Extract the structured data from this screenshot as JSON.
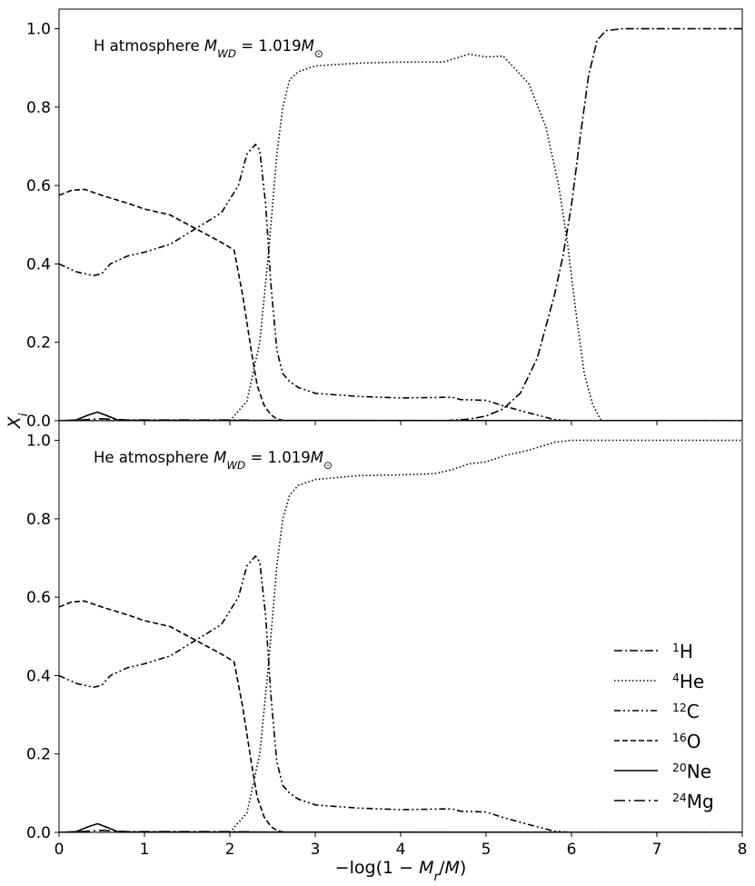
{
  "chart_data": [
    {
      "type": "line",
      "title": "H atmosphere $M_{WD} = 1.019M_\\odot$",
      "xlim": [
        0,
        8
      ],
      "ylim": [
        0,
        1.05
      ],
      "xticks": [
        "0",
        "1",
        "2",
        "3",
        "4",
        "5",
        "6",
        "7",
        "8"
      ],
      "yticks": [
        "0.0",
        "0.2",
        "0.4",
        "0.6",
        "0.8",
        "1.0"
      ],
      "series": [
        {
          "name": "1H",
          "style": "dashdot",
          "x": [
            0,
            4.5,
            4.8,
            5.0,
            5.2,
            5.4,
            5.6,
            5.8,
            5.9,
            6.0,
            6.1,
            6.2,
            6.3,
            6.4,
            6.6,
            8.0
          ],
          "y": [
            0.0,
            0.0,
            0.004,
            0.012,
            0.03,
            0.07,
            0.16,
            0.32,
            0.42,
            0.55,
            0.72,
            0.88,
            0.97,
            0.995,
            1.0,
            1.0
          ]
        },
        {
          "name": "4He",
          "style": "dotted",
          "x": [
            0,
            2.0,
            2.2,
            2.35,
            2.45,
            2.55,
            2.62,
            2.7,
            2.8,
            3.0,
            3.5,
            4.0,
            4.5,
            4.8,
            5.0,
            5.2,
            5.5,
            5.7,
            5.85,
            5.95,
            6.05,
            6.15,
            6.25,
            6.35,
            8.0
          ],
          "y": [
            0.0,
            0.0,
            0.05,
            0.2,
            0.42,
            0.68,
            0.8,
            0.87,
            0.89,
            0.905,
            0.912,
            0.915,
            0.915,
            0.935,
            0.928,
            0.93,
            0.86,
            0.75,
            0.6,
            0.46,
            0.28,
            0.12,
            0.04,
            0.0,
            0.0
          ]
        },
        {
          "name": "12C",
          "style": "dashdotdot",
          "x": [
            0,
            0.2,
            0.4,
            0.5,
            0.6,
            0.8,
            1.0,
            1.3,
            1.6,
            1.9,
            2.1,
            2.2,
            2.3,
            2.35,
            2.42,
            2.48,
            2.55,
            2.62,
            2.7,
            2.8,
            3.0,
            3.5,
            4.0,
            4.6,
            4.7,
            5.0,
            5.2,
            5.5,
            5.8,
            6.0
          ],
          "y": [
            0.4,
            0.38,
            0.37,
            0.375,
            0.4,
            0.42,
            0.43,
            0.45,
            0.49,
            0.53,
            0.6,
            0.68,
            0.705,
            0.69,
            0.55,
            0.35,
            0.18,
            0.12,
            0.1,
            0.085,
            0.07,
            0.062,
            0.058,
            0.06,
            0.054,
            0.052,
            0.038,
            0.02,
            0.003,
            0.0
          ]
        },
        {
          "name": "16O",
          "style": "dashed",
          "x": [
            0,
            0.15,
            0.3,
            0.5,
            0.8,
            1.0,
            1.3,
            1.6,
            1.9,
            2.05,
            2.15,
            2.25,
            2.32,
            2.4,
            2.48,
            2.55,
            2.62,
            2.7,
            8.0
          ],
          "y": [
            0.575,
            0.588,
            0.59,
            0.575,
            0.555,
            0.54,
            0.525,
            0.49,
            0.455,
            0.435,
            0.32,
            0.18,
            0.09,
            0.04,
            0.015,
            0.005,
            0.001,
            0.0,
            0.0
          ]
        },
        {
          "name": "20Ne",
          "style": "solid",
          "x": [
            0,
            0.2,
            0.35,
            0.45,
            0.55,
            0.7,
            8.0
          ],
          "y": [
            0.0,
            0.002,
            0.015,
            0.022,
            0.014,
            0.001,
            0.0
          ]
        },
        {
          "name": "24Mg",
          "style": "longdashdot",
          "x": [
            0,
            0.2,
            0.4,
            0.5,
            0.6,
            0.8,
            2.0,
            2.6,
            8.0
          ],
          "y": [
            0.0,
            0.001,
            0.004,
            0.005,
            0.004,
            0.002,
            0.002,
            0.0,
            0.0
          ]
        }
      ]
    },
    {
      "type": "line",
      "title": "He atmosphere $M_{WD} = 1.019M_\\odot$",
      "xlabel": "$-\\log(1 - M_r/M)$",
      "xlim": [
        0,
        8
      ],
      "ylim": [
        0,
        1.05
      ],
      "xticks": [
        "0",
        "1",
        "2",
        "3",
        "4",
        "5",
        "6",
        "7",
        "8"
      ],
      "yticks": [
        "0.0",
        "0.2",
        "0.4",
        "0.6",
        "0.8",
        "1.0"
      ],
      "series": [
        {
          "name": "4He",
          "style": "dotted",
          "x": [
            0,
            2.0,
            2.2,
            2.35,
            2.45,
            2.55,
            2.62,
            2.7,
            2.8,
            3.0,
            3.5,
            4.0,
            4.4,
            4.6,
            4.8,
            5.0,
            5.2,
            5.5,
            5.8,
            6.0,
            6.5,
            8.0
          ],
          "y": [
            0.0,
            0.0,
            0.05,
            0.2,
            0.42,
            0.68,
            0.8,
            0.86,
            0.885,
            0.9,
            0.91,
            0.912,
            0.915,
            0.925,
            0.94,
            0.945,
            0.96,
            0.975,
            0.995,
            1.0,
            1.0,
            1.0
          ]
        },
        {
          "name": "12C",
          "style": "dashdotdot",
          "x": [
            0,
            0.2,
            0.4,
            0.5,
            0.6,
            0.8,
            1.0,
            1.3,
            1.6,
            1.9,
            2.1,
            2.2,
            2.3,
            2.35,
            2.42,
            2.48,
            2.55,
            2.62,
            2.7,
            2.8,
            3.0,
            3.5,
            4.0,
            4.6,
            4.7,
            5.0,
            5.2,
            5.5,
            5.8,
            6.0
          ],
          "y": [
            0.4,
            0.38,
            0.37,
            0.375,
            0.4,
            0.42,
            0.43,
            0.45,
            0.49,
            0.53,
            0.6,
            0.68,
            0.705,
            0.69,
            0.55,
            0.35,
            0.18,
            0.12,
            0.1,
            0.085,
            0.07,
            0.062,
            0.058,
            0.06,
            0.054,
            0.052,
            0.038,
            0.02,
            0.003,
            0.0
          ]
        },
        {
          "name": "16O",
          "style": "dashed",
          "x": [
            0,
            0.15,
            0.3,
            0.5,
            0.8,
            1.0,
            1.3,
            1.6,
            1.9,
            2.05,
            2.15,
            2.25,
            2.32,
            2.4,
            2.48,
            2.55,
            2.62,
            2.7,
            8.0
          ],
          "y": [
            0.575,
            0.588,
            0.59,
            0.575,
            0.555,
            0.54,
            0.525,
            0.49,
            0.455,
            0.435,
            0.32,
            0.18,
            0.09,
            0.04,
            0.015,
            0.005,
            0.001,
            0.0,
            0.0
          ]
        },
        {
          "name": "20Ne",
          "style": "solid",
          "x": [
            0,
            0.2,
            0.35,
            0.45,
            0.55,
            0.7,
            8.0
          ],
          "y": [
            0.0,
            0.002,
            0.015,
            0.022,
            0.014,
            0.001,
            0.0
          ]
        },
        {
          "name": "24Mg",
          "style": "longdashdot",
          "x": [
            0,
            0.2,
            0.4,
            0.5,
            0.6,
            0.8,
            2.0,
            2.6,
            8.0
          ],
          "y": [
            0.0,
            0.001,
            0.004,
            0.005,
            0.004,
            0.002,
            0.002,
            0.0,
            0.0
          ]
        }
      ]
    }
  ],
  "shared_ylabel": "$X_i$",
  "legend": {
    "placement": "lower-right",
    "entries": [
      {
        "name": "1H",
        "label_sup": "1",
        "label_main": "H",
        "style": "dashdot"
      },
      {
        "name": "4He",
        "label_sup": "4",
        "label_main": "He",
        "style": "dotted"
      },
      {
        "name": "12C",
        "label_sup": "12",
        "label_main": "C",
        "style": "dashdotdot"
      },
      {
        "name": "16O",
        "label_sup": "16",
        "label_main": "O",
        "style": "dashed"
      },
      {
        "name": "20Ne",
        "label_sup": "20",
        "label_main": "Ne",
        "style": "solid"
      },
      {
        "name": "24Mg",
        "label_sup": "24",
        "label_main": "Mg",
        "style": "longdashdot"
      }
    ]
  }
}
